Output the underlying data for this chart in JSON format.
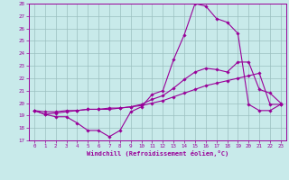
{
  "xlabel": "Windchill (Refroidissement éolien,°C)",
  "xlim": [
    -0.5,
    23.5
  ],
  "ylim": [
    17,
    28
  ],
  "xticks": [
    0,
    1,
    2,
    3,
    4,
    5,
    6,
    7,
    8,
    9,
    10,
    11,
    12,
    13,
    14,
    15,
    16,
    17,
    18,
    19,
    20,
    21,
    22,
    23
  ],
  "yticks": [
    17,
    18,
    19,
    20,
    21,
    22,
    23,
    24,
    25,
    26,
    27,
    28
  ],
  "bg_color": "#c8eaea",
  "line_color": "#990099",
  "grid_color": "#9bbfbf",
  "line1_x": [
    0,
    1,
    2,
    3,
    4,
    5,
    6,
    7,
    8,
    9,
    10,
    11,
    12,
    13,
    14,
    15,
    16,
    17,
    18,
    19,
    20,
    21,
    22,
    23
  ],
  "line1_y": [
    19.4,
    19.1,
    18.9,
    18.9,
    18.4,
    17.8,
    17.8,
    17.3,
    17.8,
    19.3,
    19.7,
    20.7,
    21.0,
    23.5,
    25.5,
    28.0,
    27.8,
    26.8,
    26.5,
    25.6,
    19.9,
    19.4,
    19.4,
    19.9
  ],
  "line2_x": [
    0,
    1,
    2,
    3,
    4,
    5,
    6,
    7,
    8,
    9,
    10,
    11,
    12,
    13,
    14,
    15,
    16,
    17,
    18,
    19,
    20,
    21,
    22,
    23
  ],
  "line2_y": [
    19.4,
    19.1,
    19.2,
    19.3,
    19.4,
    19.5,
    19.5,
    19.6,
    19.6,
    19.7,
    19.9,
    20.3,
    20.6,
    21.2,
    21.9,
    22.5,
    22.8,
    22.7,
    22.5,
    23.3,
    23.3,
    21.1,
    20.8,
    20.0
  ],
  "line3_x": [
    0,
    1,
    2,
    3,
    4,
    5,
    6,
    7,
    8,
    9,
    10,
    11,
    12,
    13,
    14,
    15,
    16,
    17,
    18,
    19,
    20,
    21,
    22,
    23
  ],
  "line3_y": [
    19.4,
    19.3,
    19.3,
    19.4,
    19.4,
    19.5,
    19.5,
    19.5,
    19.6,
    19.7,
    19.8,
    20.0,
    20.2,
    20.5,
    20.8,
    21.1,
    21.4,
    21.6,
    21.8,
    22.0,
    22.2,
    22.4,
    19.9,
    19.9
  ]
}
